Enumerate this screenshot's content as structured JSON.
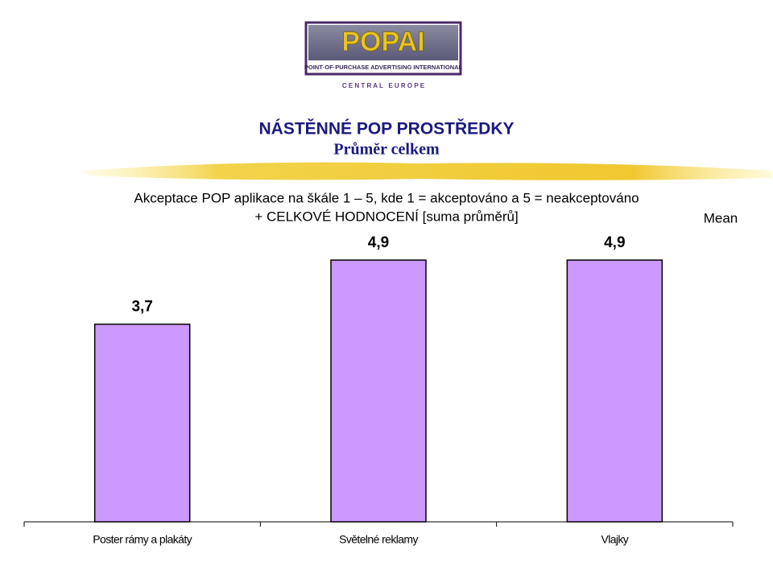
{
  "logo": {
    "name": "POPAI",
    "tagline": "POINT·OF·PURCHASE ADVERTISING INTERNATIONAL",
    "region": "C E N T R A L   E U R O P E"
  },
  "slide": {
    "title": "NÁSTĚNNÉ POP PROSTŘEDKY",
    "subtitle": "Průměr celkem"
  },
  "chart_data": {
    "type": "bar",
    "title": [
      "Akceptace POP aplikace na škále 1 – 5, kde 1 = akceptováno a 5 = neakceptováno",
      "+ CELKOVÉ HODNOCENÍ [suma průměrů]"
    ],
    "categories": [
      "Poster rámy a plakáty",
      "Světelné reklamy",
      "Vlajky"
    ],
    "series": [
      {
        "name": "Mean",
        "color": "#cc99ff",
        "values": [
          3.7,
          4.9,
          4.9
        ],
        "value_labels": [
          "3,7",
          "4,9",
          "4,9"
        ]
      }
    ],
    "legend": "right"
  }
}
